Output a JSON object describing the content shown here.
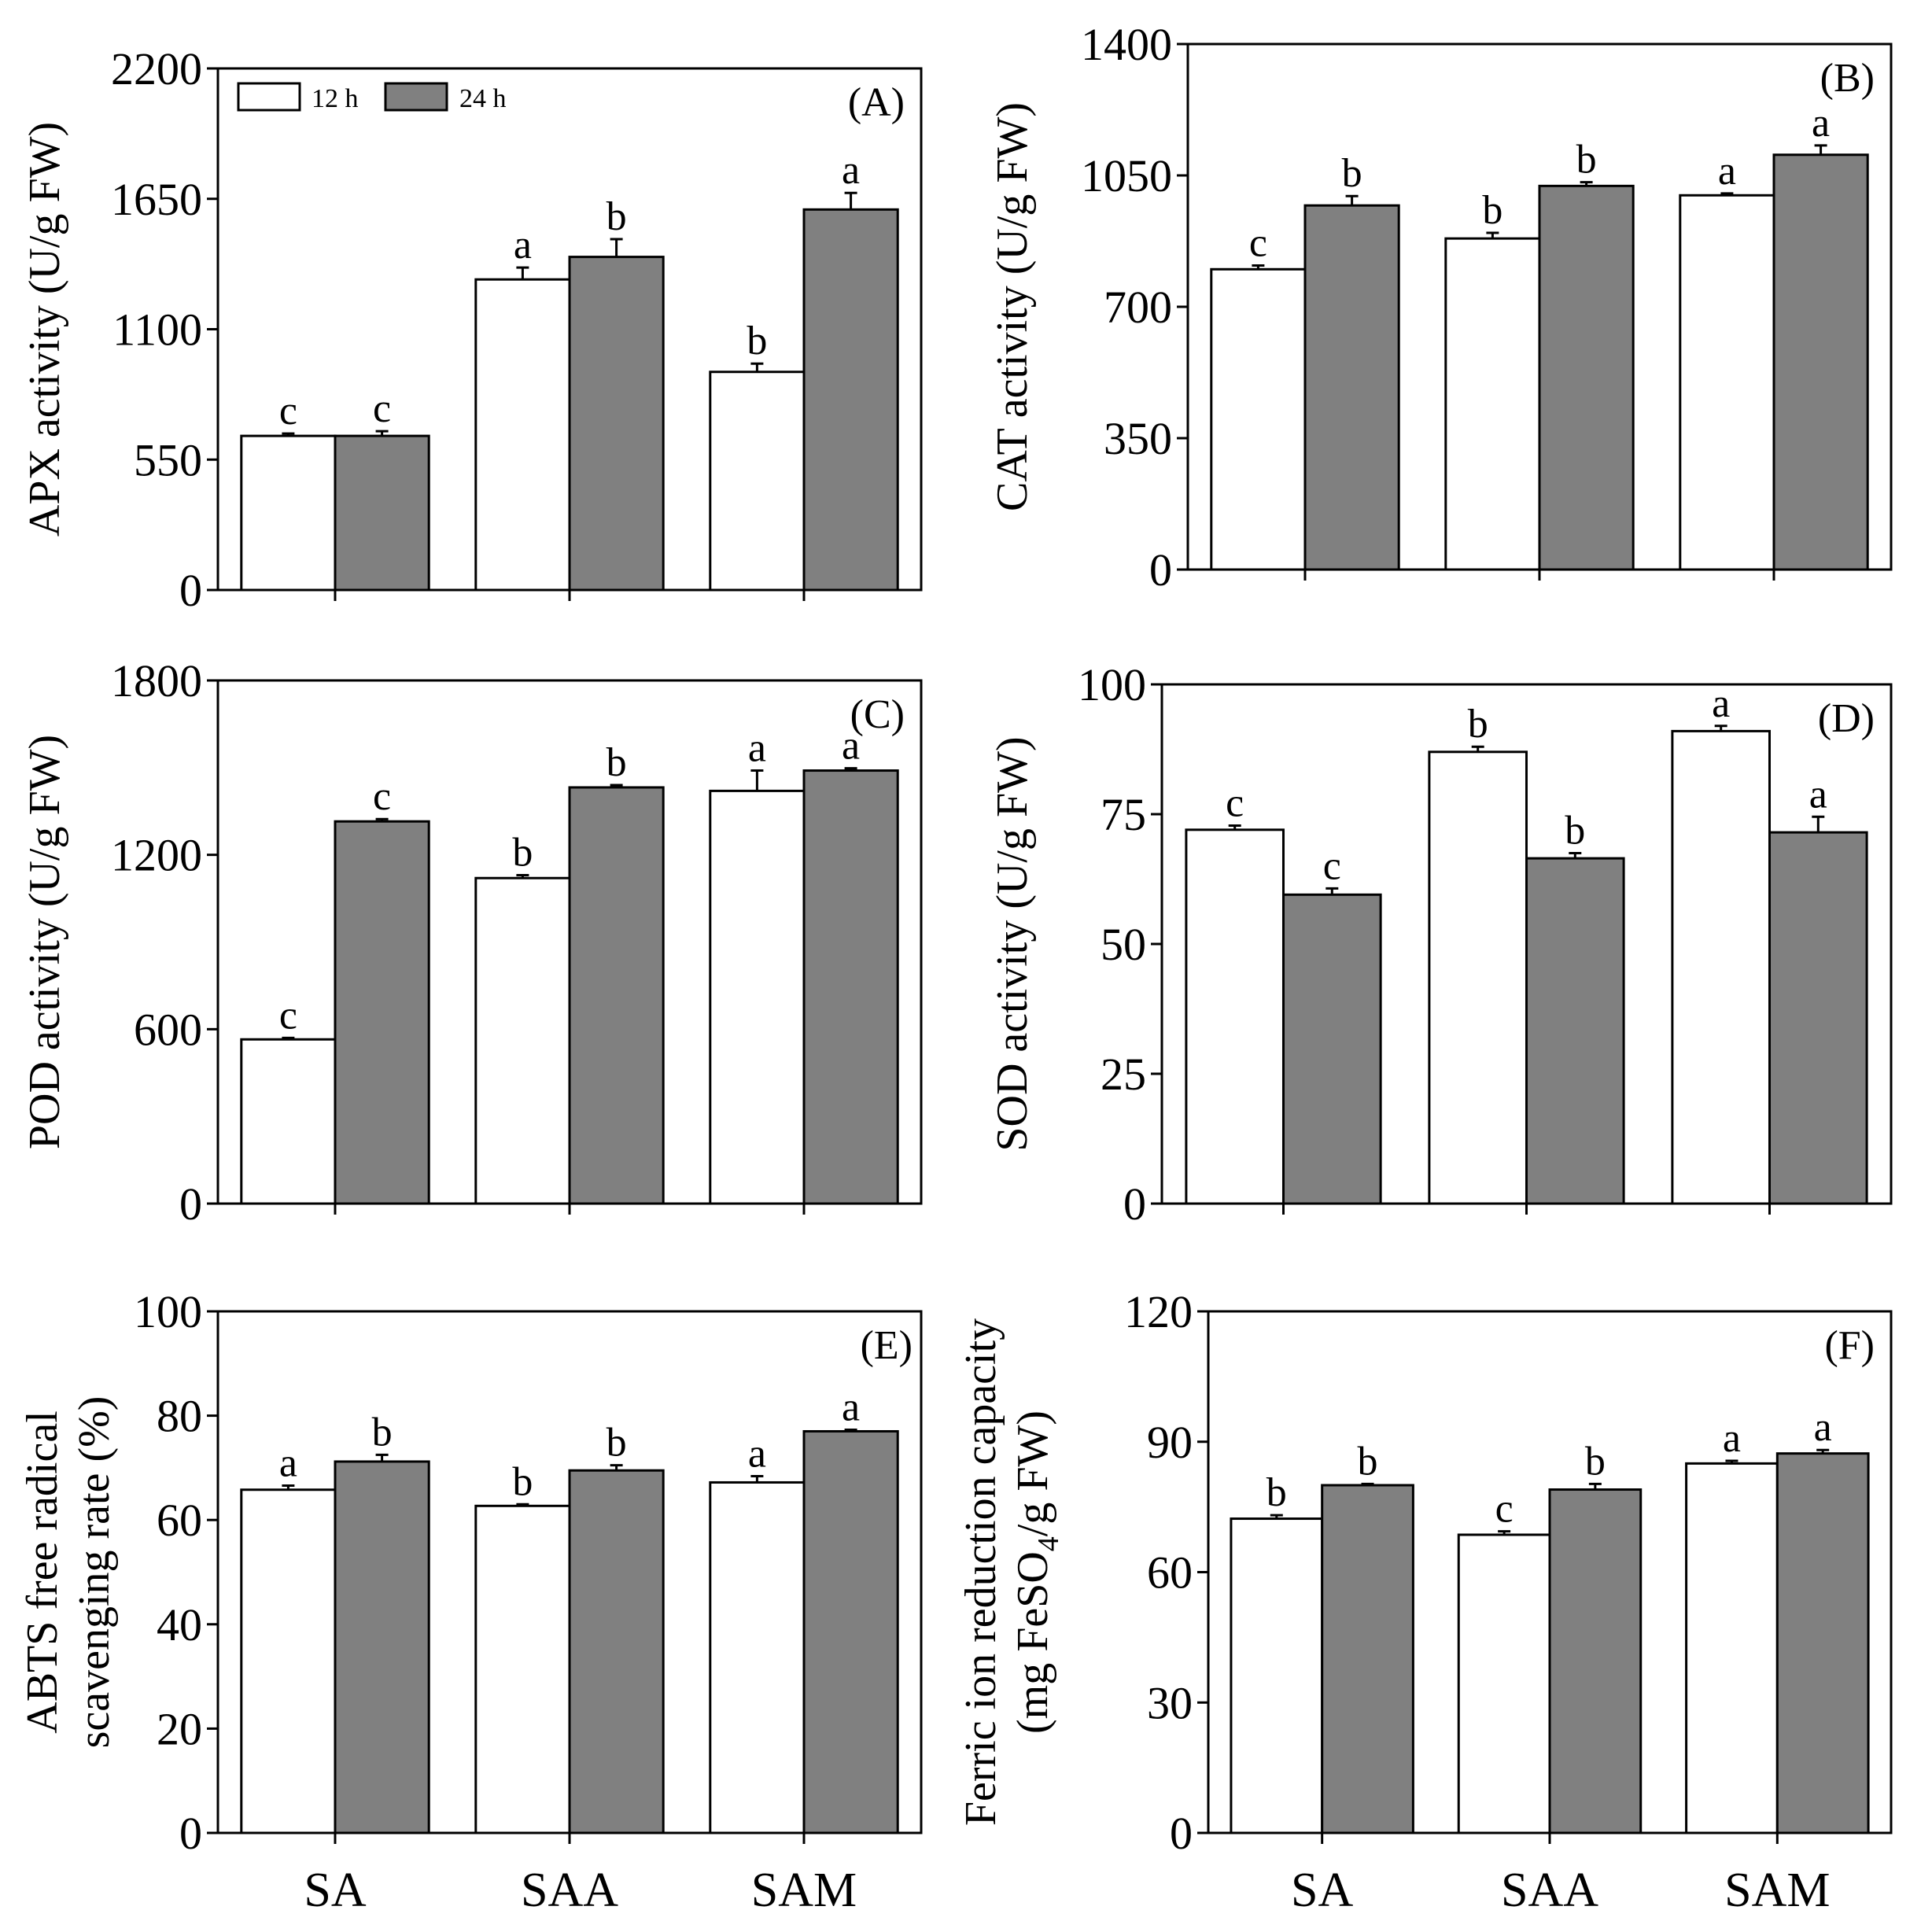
{
  "legend": [
    {
      "label": "12 h",
      "color": "#ffffff"
    },
    {
      "label": "24 h",
      "color": "#808080"
    }
  ],
  "chart_data": [
    {
      "type": "bar",
      "panel": "(A)",
      "categories": [
        "SA",
        "SAA",
        "SAM"
      ],
      "ylabel": "APX activity (U/g FW)",
      "ylim": [
        0,
        2200
      ],
      "yticks": [
        "0",
        "550",
        "1100",
        "1650",
        "2200"
      ],
      "legend_shown": true,
      "show_xlabels": false,
      "series": [
        {
          "name": "12 h",
          "values": [
            650,
            1310,
            920
          ],
          "errors": [
            10,
            50,
            35
          ],
          "letters": [
            "c",
            "a",
            "b"
          ]
        },
        {
          "name": "24 h",
          "values": [
            650,
            1405,
            1605
          ],
          "errors": [
            20,
            75,
            70
          ],
          "letters": [
            "c",
            "b",
            "a"
          ]
        }
      ]
    },
    {
      "type": "bar",
      "panel": "(B)",
      "categories": [
        "SA",
        "SAA",
        "SAM"
      ],
      "ylabel": "CAT activity (U/g FW)",
      "ylim": [
        0,
        1400
      ],
      "yticks": [
        "0",
        "350",
        "700",
        "1050",
        "1400"
      ],
      "legend_shown": false,
      "show_xlabels": false,
      "series": [
        {
          "name": "12 h",
          "values": [
            800,
            882,
            997
          ],
          "errors": [
            10,
            15,
            5
          ],
          "letters": [
            "c",
            "b",
            "a"
          ]
        },
        {
          "name": "24 h",
          "values": [
            970,
            1022,
            1105
          ],
          "errors": [
            25,
            10,
            25
          ],
          "letters": [
            "b",
            "b",
            "a"
          ]
        }
      ]
    },
    {
      "type": "bar",
      "panel": "(C)",
      "categories": [
        "SA",
        "SAA",
        "SAM"
      ],
      "ylabel": "POD activity (U/g FW)",
      "ylim": [
        0,
        1800
      ],
      "yticks": [
        "0",
        "600",
        "1200",
        "1800"
      ],
      "legend_shown": false,
      "show_xlabels": false,
      "series": [
        {
          "name": "12 h",
          "values": [
            565,
            1120,
            1420
          ],
          "errors": [
            5,
            10,
            70
          ],
          "letters": [
            "c",
            "b",
            "a"
          ]
        },
        {
          "name": "24 h",
          "values": [
            1315,
            1432,
            1490
          ],
          "errors": [
            8,
            8,
            8
          ],
          "letters": [
            "c",
            "b",
            "a"
          ]
        }
      ]
    },
    {
      "type": "bar",
      "panel": "(D)",
      "categories": [
        "SA",
        "SAA",
        "SAM"
      ],
      "ylabel": "SOD activity (U/g FW)",
      "ylim": [
        0,
        100
      ],
      "yticks": [
        "0",
        "25",
        "50",
        "75",
        "100"
      ],
      "legend_shown": false,
      "show_xlabels": false,
      "series": [
        {
          "name": "12 h",
          "values": [
            72,
            87,
            91
          ],
          "errors": [
            0.8,
            1,
            1
          ],
          "letters": [
            "c",
            "b",
            "a"
          ]
        },
        {
          "name": "24 h",
          "values": [
            59.5,
            66.5,
            71.5
          ],
          "errors": [
            1.2,
            1,
            3
          ],
          "letters": [
            "c",
            "b",
            "a"
          ]
        }
      ]
    },
    {
      "type": "bar",
      "panel": "(E)",
      "categories": [
        "SA",
        "SAA",
        "SAM"
      ],
      "ylabel": [
        "ABTS free radical",
        "scavenging rate (%)"
      ],
      "ylim": [
        0,
        100
      ],
      "yticks": [
        "0",
        "20",
        "40",
        "60",
        "80",
        "100"
      ],
      "legend_shown": false,
      "show_xlabels": true,
      "series": [
        {
          "name": "12 h",
          "values": [
            65.8,
            62.7,
            67.2
          ],
          "errors": [
            0.8,
            0.3,
            1.2
          ],
          "letters": [
            "a",
            "b",
            "a"
          ]
        },
        {
          "name": "24 h",
          "values": [
            71.2,
            69.5,
            77
          ],
          "errors": [
            1.3,
            1,
            0.3
          ],
          "letters": [
            "b",
            "b",
            "a"
          ]
        }
      ]
    },
    {
      "type": "bar",
      "panel": "(F)",
      "categories": [
        "SA",
        "SAA",
        "SAM"
      ],
      "ylabel": [
        "Ferric ion reduction capacity",
        "(mg FeSO",
        "4",
        "/g FW)"
      ],
      "ylim": [
        0,
        120
      ],
      "yticks": [
        "0",
        "30",
        "60",
        "90",
        "120"
      ],
      "legend_shown": false,
      "show_xlabels": true,
      "series": [
        {
          "name": "12 h",
          "values": [
            72.3,
            68.6,
            85
          ],
          "errors": [
            0.8,
            0.8,
            0.6
          ],
          "letters": [
            "b",
            "c",
            "a"
          ]
        },
        {
          "name": "24 h",
          "values": [
            80,
            79,
            87.3
          ],
          "errors": [
            0.3,
            1.3,
            0.8
          ],
          "letters": [
            "b",
            "b",
            "a"
          ]
        }
      ]
    }
  ]
}
